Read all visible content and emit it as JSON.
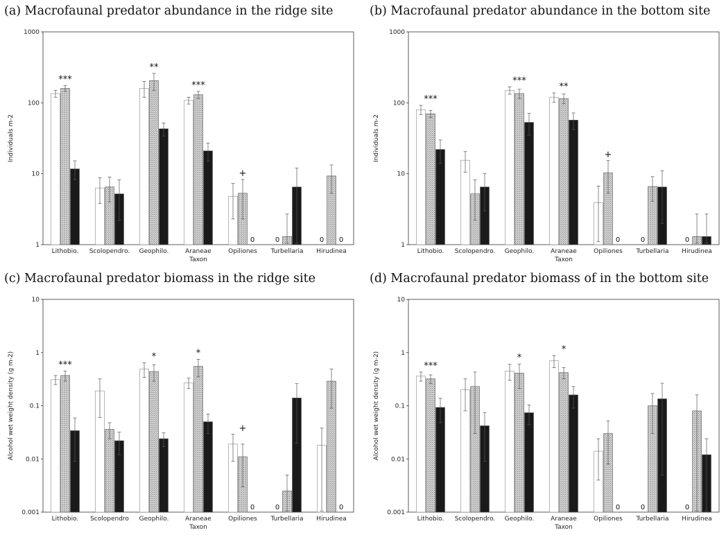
{
  "chart_data": [
    {
      "type": "bar",
      "title": "(a) Macrofaunal predator abundance in the ridge site",
      "xlabel": "Taxon",
      "ylabel": "Individuals m-2",
      "yscale": "log",
      "ylim": [
        1,
        1000
      ],
      "yticks": [
        "1",
        "10",
        "100",
        "1000"
      ],
      "categories": [
        "Lithobio.",
        "Scolopendro.",
        "Geophilo.",
        "Araneae",
        "Opiliones",
        "Turbellaria",
        "Hirudinea"
      ],
      "series": [
        {
          "values": [
            135,
            6.3,
            160,
            108,
            4.8,
            0,
            0
          ],
          "errors": [
            15,
            2.5,
            40,
            12,
            2.5,
            0,
            0
          ],
          "color": "#ffffff"
        },
        {
          "values": [
            160,
            6.5,
            205,
            130,
            5.3,
            1.3,
            9.3
          ],
          "errors": [
            15,
            2.5,
            55,
            15,
            3,
            1.4,
            4
          ],
          "color": "#c8c8c8"
        },
        {
          "values": [
            11.7,
            5.2,
            43,
            21,
            0,
            6.5,
            0
          ],
          "errors": [
            3.5,
            3,
            9,
            6,
            0,
            5.5,
            0
          ],
          "color": "#1a1a1a"
        }
      ],
      "annotations": [
        {
          "category": "Lithobio.",
          "text": "***"
        },
        {
          "category": "Geophilo.",
          "text": "**"
        },
        {
          "category": "Araneae",
          "text": "***"
        },
        {
          "category": "Opiliones",
          "text": "+"
        }
      ],
      "zero_labels": [
        {
          "category": "Opiliones",
          "series": 2,
          "text": "0"
        },
        {
          "category": "Turbellaria",
          "series": 0,
          "text": "0"
        },
        {
          "category": "Hirudinea",
          "series": 0,
          "text": "0"
        },
        {
          "category": "Hirudinea",
          "series": 2,
          "text": "0"
        }
      ]
    },
    {
      "type": "bar",
      "title": "(b) Macrofaunal predator abundance in the bottom site",
      "xlabel": "Taxon",
      "ylabel": "Individuals m-2",
      "yscale": "log",
      "ylim": [
        1,
        1000
      ],
      "yticks": [
        "1",
        "10",
        "100",
        "1000"
      ],
      "categories": [
        "Lithobio.",
        "Scolopendro.",
        "Geophilo.",
        "Araneae",
        "Opiliones",
        "Turbellaria",
        "Hirudinea"
      ],
      "series": [
        {
          "values": [
            80,
            15.5,
            150,
            120,
            3.9,
            0,
            0
          ],
          "errors": [
            12,
            5,
            18,
            18,
            2.8,
            0,
            0
          ],
          "color": "#ffffff"
        },
        {
          "values": [
            70,
            5.2,
            135,
            115,
            10.3,
            6.6,
            1.3
          ],
          "errors": [
            8,
            3,
            20,
            18,
            5,
            2.5,
            1.4
          ],
          "color": "#c8c8c8"
        },
        {
          "values": [
            22,
            6.5,
            53,
            57,
            0,
            6.5,
            1.3
          ],
          "errors": [
            8,
            3.5,
            18,
            15,
            0,
            4.5,
            1.4
          ],
          "color": "#1a1a1a"
        }
      ],
      "annotations": [
        {
          "category": "Lithobio.",
          "text": "***"
        },
        {
          "category": "Geophilo.",
          "text": "***"
        },
        {
          "category": "Araneae",
          "text": "**"
        },
        {
          "category": "Opiliones",
          "text": "+"
        }
      ],
      "zero_labels": [
        {
          "category": "Opiliones",
          "series": 2,
          "text": "0"
        },
        {
          "category": "Turbellaria",
          "series": 0,
          "text": "0"
        },
        {
          "category": "Hirudinea",
          "series": 0,
          "text": "0"
        }
      ]
    },
    {
      "type": "bar",
      "title": "(c) Macrofaunal predator biomass in the ridge site",
      "xlabel": "Taxon",
      "ylabel": "Alcohol wet weight density (g m-2)",
      "yscale": "log",
      "ylim": [
        0.001,
        10
      ],
      "yticks": [
        "0.001",
        "0.01",
        "0.1",
        "1",
        "10"
      ],
      "categories": [
        "Lithobio.",
        "Scolopendro",
        "Geophilo.",
        "Araneae",
        "Opiliones",
        "Turbellaria",
        "Hirudinea"
      ],
      "series": [
        {
          "values": [
            0.31,
            0.19,
            0.49,
            0.27,
            0.019,
            0,
            0.018
          ],
          "errors": [
            0.06,
            0.13,
            0.15,
            0.06,
            0.01,
            0,
            0.02
          ],
          "color": "#ffffff"
        },
        {
          "values": [
            0.37,
            0.036,
            0.44,
            0.55,
            0.011,
            0.0025,
            0.29
          ],
          "errors": [
            0.08,
            0.012,
            0.15,
            0.2,
            0.008,
            0.0025,
            0.2
          ],
          "color": "#c8c8c8"
        },
        {
          "values": [
            0.034,
            0.022,
            0.024,
            0.05,
            0,
            0.14,
            0
          ],
          "errors": [
            0.025,
            0.01,
            0.007,
            0.02,
            0,
            0.12,
            0
          ],
          "color": "#1a1a1a"
        }
      ],
      "annotations": [
        {
          "category": "Lithobio.",
          "text": "***"
        },
        {
          "category": "Geophilo.",
          "text": "*"
        },
        {
          "category": "Araneae",
          "text": "*"
        },
        {
          "category": "Opiliones",
          "text": "+"
        }
      ],
      "zero_labels": [
        {
          "category": "Opiliones",
          "series": 2,
          "text": "0"
        },
        {
          "category": "Turbellaria",
          "series": 0,
          "text": "0"
        },
        {
          "category": "Hirudinea",
          "series": 2,
          "text": "0"
        }
      ]
    },
    {
      "type": "bar",
      "title": "(d) Macrofaunal predator biomass of in the bottom site",
      "xlabel": "Taxon",
      "ylabel": "Alcohol wet weight density (g m-2)",
      "yscale": "log",
      "ylim": [
        0.001,
        10
      ],
      "yticks": [
        "0.001",
        "0.01",
        "0.1",
        "1",
        "10"
      ],
      "categories": [
        "Lithobio.",
        "Scolopendro.",
        "Geophilo.",
        "Araneae",
        "Opiliones",
        "Turbellaria",
        "Hirudinea"
      ],
      "series": [
        {
          "values": [
            0.36,
            0.2,
            0.45,
            0.7,
            0.014,
            0,
            0
          ],
          "errors": [
            0.07,
            0.12,
            0.15,
            0.18,
            0.01,
            0,
            0
          ],
          "color": "#ffffff"
        },
        {
          "values": [
            0.32,
            0.23,
            0.41,
            0.42,
            0.03,
            0.1,
            0.08
          ],
          "errors": [
            0.06,
            0.2,
            0.2,
            0.1,
            0.022,
            0.07,
            0.08
          ],
          "color": "#c8c8c8"
        },
        {
          "values": [
            0.093,
            0.042,
            0.074,
            0.16,
            0,
            0.135,
            0.012
          ],
          "errors": [
            0.045,
            0.033,
            0.03,
            0.07,
            0,
            0.13,
            0.012
          ],
          "color": "#1a1a1a"
        }
      ],
      "annotations": [
        {
          "category": "Lithobio.",
          "text": "***"
        },
        {
          "category": "Geophilo.",
          "text": "*"
        },
        {
          "category": "Araneae",
          "text": "*"
        }
      ],
      "zero_labels": [
        {
          "category": "Opiliones",
          "series": 2,
          "text": "0"
        },
        {
          "category": "Turbellaria",
          "series": 0,
          "text": "0"
        },
        {
          "category": "Hirudinea",
          "series": 0,
          "text": "0"
        }
      ]
    }
  ]
}
